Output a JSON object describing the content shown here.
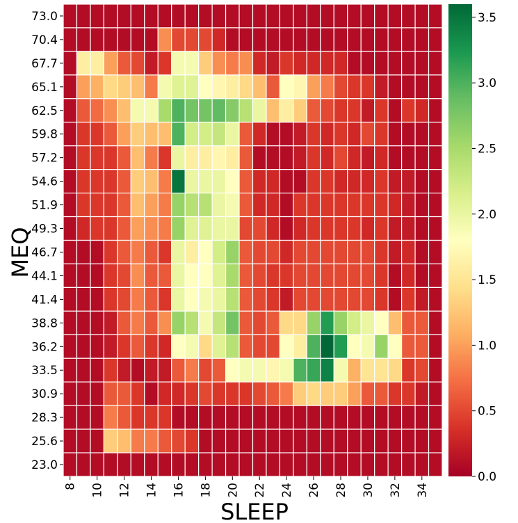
{
  "chart_data": {
    "type": "heatmap",
    "xlabel": "SLEEP",
    "ylabel": "MEQ",
    "x": [
      8,
      9,
      10,
      11,
      12,
      13,
      14,
      15,
      16,
      17,
      18,
      19,
      20,
      21,
      22,
      23,
      24,
      25,
      26,
      27,
      28,
      29,
      30,
      31,
      32,
      33,
      34,
      35
    ],
    "x_tick_labels": [
      "8",
      "10",
      "12",
      "14",
      "16",
      "18",
      "20",
      "22",
      "24",
      "26",
      "28",
      "30",
      "32",
      "34"
    ],
    "y_tick_labels": [
      "73.0",
      "70.4",
      "67.7",
      "65.1",
      "62.5",
      "59.8",
      "57.2",
      "54.6",
      "51.9",
      "49.3",
      "46.7",
      "44.1",
      "41.4",
      "38.8",
      "36.2",
      "33.5",
      "30.9",
      "28.3",
      "25.6",
      "23.0"
    ],
    "values": [
      [
        0.1,
        0.1,
        0.1,
        0.1,
        0.1,
        0.1,
        0.1,
        0.1,
        0.1,
        0.1,
        0.1,
        0.1,
        0.1,
        0.1,
        0.1,
        0.1,
        0.1,
        0.1,
        0.1,
        0.1,
        0.1,
        0.1,
        0.1,
        0.1,
        0.1,
        0.1,
        0.1,
        0.1
      ],
      [
        0.1,
        0.1,
        0.1,
        0.1,
        0.1,
        0.1,
        0.1,
        0.9,
        0.5,
        0.5,
        0.5,
        0.3,
        0.1,
        0.1,
        0.1,
        0.1,
        0.1,
        0.1,
        0.1,
        0.1,
        0.1,
        0.1,
        0.1,
        0.1,
        0.1,
        0.1,
        0.1,
        0.1
      ],
      [
        0.1,
        1.6,
        1.6,
        1.0,
        0.6,
        0.5,
        0.2,
        0.4,
        1.9,
        1.9,
        1.3,
        0.9,
        0.8,
        0.9,
        0.3,
        0.2,
        0.4,
        0.3,
        0.3,
        0.3,
        0.3,
        0.1,
        0.1,
        0.1,
        0.1,
        0.1,
        0.1,
        0.1
      ],
      [
        0.1,
        1.0,
        1.1,
        1.4,
        1.3,
        1.2,
        0.8,
        1.9,
        2.1,
        2.1,
        1.8,
        1.7,
        1.6,
        1.4,
        1.2,
        0.6,
        1.8,
        1.7,
        1.0,
        0.8,
        0.5,
        0.4,
        0.4,
        0.2,
        0.1,
        0.1,
        0.1,
        0.1
      ],
      [
        0.1,
        0.6,
        0.7,
        0.9,
        1.2,
        1.9,
        1.9,
        2.5,
        3.0,
        2.8,
        2.8,
        2.9,
        2.7,
        2.4,
        2.0,
        1.2,
        1.6,
        1.3,
        0.6,
        0.5,
        0.4,
        0.4,
        0.2,
        0.4,
        0.1,
        0.4,
        0.3,
        0.1
      ],
      [
        0.1,
        0.4,
        0.4,
        0.6,
        1.0,
        1.3,
        1.2,
        1.2,
        3.0,
        2.2,
        2.2,
        2.3,
        2.0,
        0.6,
        0.3,
        0.1,
        0.1,
        0.2,
        0.4,
        0.3,
        0.4,
        0.3,
        0.5,
        0.4,
        0.1,
        0.1,
        0.1,
        0.1
      ],
      [
        0.1,
        0.4,
        0.4,
        0.4,
        0.6,
        1.2,
        0.8,
        0.4,
        2.0,
        1.6,
        1.6,
        1.7,
        1.6,
        0.6,
        0.1,
        0.1,
        0.1,
        0.2,
        0.4,
        0.3,
        0.5,
        0.3,
        0.2,
        0.3,
        0.1,
        0.1,
        0.1,
        0.1
      ],
      [
        0.1,
        0.4,
        0.4,
        0.4,
        0.6,
        1.3,
        1.2,
        0.8,
        3.5,
        2.0,
        2.0,
        2.0,
        1.8,
        0.6,
        0.3,
        0.3,
        0.1,
        0.1,
        0.4,
        0.4,
        0.3,
        0.3,
        0.3,
        0.4,
        0.2,
        0.2,
        0.1,
        0.1
      ],
      [
        0.1,
        0.4,
        0.4,
        0.4,
        0.6,
        1.2,
        1.0,
        0.8,
        2.6,
        2.4,
        2.4,
        2.0,
        1.9,
        0.6,
        0.3,
        0.3,
        0.1,
        0.4,
        0.4,
        0.4,
        0.4,
        0.4,
        0.4,
        0.4,
        0.3,
        0.2,
        0.1,
        0.1
      ],
      [
        0.1,
        0.3,
        0.4,
        0.4,
        0.6,
        1.0,
        0.9,
        0.8,
        2.6,
        2.1,
        2.1,
        2.0,
        2.0,
        0.5,
        0.5,
        0.3,
        0.1,
        0.3,
        0.4,
        0.4,
        0.4,
        0.4,
        0.3,
        0.4,
        0.2,
        0.2,
        0.1,
        0.1
      ],
      [
        0.1,
        0.1,
        0.1,
        0.4,
        0.6,
        0.8,
        0.6,
        0.4,
        2.0,
        1.6,
        1.8,
        2.2,
        2.6,
        0.6,
        0.5,
        0.5,
        0.3,
        0.5,
        0.5,
        0.5,
        0.5,
        0.5,
        0.5,
        0.4,
        0.2,
        0.3,
        0.1,
        0.1
      ],
      [
        0.1,
        0.1,
        0.1,
        0.4,
        0.5,
        0.9,
        0.6,
        0.6,
        2.0,
        1.8,
        1.8,
        2.1,
        2.5,
        0.6,
        0.5,
        0.4,
        0.4,
        0.5,
        0.5,
        0.5,
        0.5,
        0.5,
        0.5,
        0.4,
        0.1,
        0.3,
        0.1,
        0.1
      ],
      [
        0.1,
        0.1,
        0.1,
        0.4,
        0.5,
        0.8,
        0.6,
        0.4,
        2.0,
        1.8,
        1.9,
        2.0,
        2.4,
        0.6,
        0.5,
        0.4,
        0.2,
        0.5,
        0.5,
        0.5,
        0.5,
        0.5,
        0.5,
        0.4,
        0.1,
        0.4,
        0.2,
        0.1
      ],
      [
        0.1,
        0.1,
        0.1,
        0.2,
        0.6,
        0.8,
        0.6,
        0.9,
        2.6,
        2.4,
        1.9,
        2.3,
        2.8,
        0.6,
        0.5,
        0.6,
        1.4,
        1.4,
        2.6,
        3.2,
        2.6,
        2.2,
        2.0,
        1.8,
        1.2,
        0.6,
        0.6,
        0.1
      ],
      [
        0.1,
        0.1,
        0.1,
        0.2,
        0.4,
        0.6,
        0.4,
        0.3,
        1.8,
        1.9,
        1.4,
        2.1,
        2.4,
        0.6,
        0.5,
        0.5,
        1.8,
        1.6,
        3.0,
        3.6,
        3.2,
        1.8,
        1.9,
        2.6,
        1.8,
        0.6,
        0.6,
        0.1
      ],
      [
        0.1,
        0.1,
        0.1,
        0.4,
        0.2,
        0.1,
        0.2,
        0.2,
        0.6,
        0.8,
        0.5,
        0.6,
        1.8,
        1.9,
        1.9,
        1.7,
        1.9,
        3.0,
        3.1,
        3.4,
        1.9,
        1.1,
        1.5,
        1.5,
        1.4,
        0.4,
        0.5,
        0.1
      ],
      [
        0.1,
        0.1,
        0.1,
        0.6,
        0.6,
        0.4,
        0.1,
        0.3,
        0.3,
        0.4,
        0.5,
        0.4,
        0.4,
        0.4,
        0.5,
        0.6,
        0.8,
        1.3,
        1.4,
        1.3,
        1.3,
        1.0,
        0.6,
        0.6,
        0.4,
        0.4,
        0.2,
        0.1
      ],
      [
        0.1,
        0.1,
        0.1,
        0.8,
        0.6,
        0.4,
        0.4,
        0.4,
        0.1,
        0.1,
        0.1,
        0.1,
        0.1,
        0.1,
        0.1,
        0.1,
        0.1,
        0.1,
        0.1,
        0.1,
        0.1,
        0.1,
        0.1,
        0.1,
        0.1,
        0.1,
        0.1,
        0.1
      ],
      [
        0.1,
        0.1,
        0.1,
        1.3,
        1.2,
        0.8,
        0.8,
        0.6,
        0.5,
        0.4,
        0.1,
        0.1,
        0.1,
        0.1,
        0.1,
        0.1,
        0.1,
        0.1,
        0.1,
        0.1,
        0.1,
        0.1,
        0.1,
        0.1,
        0.1,
        0.1,
        0.1,
        0.1
      ],
      [
        0.1,
        0.1,
        0.1,
        0.1,
        0.1,
        0.1,
        0.1,
        0.1,
        0.1,
        0.1,
        0.1,
        0.1,
        0.1,
        0.1,
        0.1,
        0.1,
        0.1,
        0.1,
        0.1,
        0.1,
        0.1,
        0.1,
        0.1,
        0.1,
        0.1,
        0.1,
        0.1,
        0.1
      ]
    ],
    "colorbar": {
      "colormap": "RdYlGn",
      "range": [
        0.0,
        3.6
      ],
      "ticks": [
        "0.0",
        "0.5",
        "1.0",
        "1.5",
        "2.0",
        "2.5",
        "3.0",
        "3.5"
      ]
    },
    "grid_line_color": "#ffffff"
  }
}
